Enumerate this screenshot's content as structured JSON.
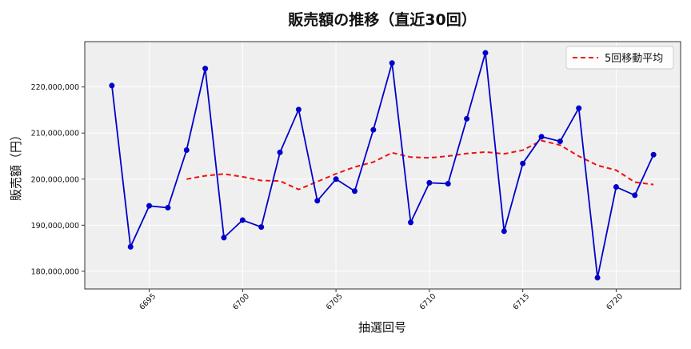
{
  "chart_data": {
    "type": "line",
    "title": "販売額の推移（直近30回）",
    "xlabel": "抽選回号",
    "ylabel": "販売額（円）",
    "x": [
      6693,
      6694,
      6695,
      6696,
      6697,
      6698,
      6699,
      6700,
      6701,
      6702,
      6703,
      6704,
      6705,
      6706,
      6707,
      6708,
      6709,
      6710,
      6711,
      6712,
      6713,
      6714,
      6715,
      6716,
      6717,
      6718,
      6719,
      6720,
      6721,
      6722
    ],
    "series": [
      {
        "name": "",
        "style": "solid-markers",
        "color": "#0000cc",
        "values": [
          220300000,
          185300000,
          194200000,
          193800000,
          206300000,
          224000000,
          187300000,
          191100000,
          189600000,
          205800000,
          215100000,
          195300000,
          200000000,
          197400000,
          210700000,
          225200000,
          190600000,
          199200000,
          199000000,
          213100000,
          227400000,
          188700000,
          203400000,
          209200000,
          208200000,
          215400000,
          178600000,
          198300000,
          196500000,
          205300000
        ]
      },
      {
        "name": "5回移動平均",
        "style": "dashed",
        "color": "#ee1111",
        "values": [
          null,
          null,
          null,
          null,
          200000000,
          200720000,
          201120000,
          200500000,
          199700000,
          199600000,
          197760000,
          199460000,
          201160000,
          202640000,
          203700000,
          205720000,
          204780000,
          204620000,
          205000000,
          205560000,
          205880000,
          205480000,
          206280000,
          208360000,
          207380000,
          204980000,
          202980000,
          201940000,
          199340000,
          198820000
        ]
      }
    ],
    "xticks": [
      6695,
      6700,
      6705,
      6710,
      6715,
      6720
    ],
    "yticks": [
      180000000,
      190000000,
      200000000,
      210000000,
      220000000
    ],
    "ytick_labels": [
      "180,000,000",
      "190,000,000",
      "200,000,000",
      "210,000,000",
      "220,000,000"
    ],
    "xlim": [
      6691.55,
      6723.45
    ],
    "ylim": [
      176160000,
      229840000
    ],
    "grid": true,
    "legend": "top-right",
    "background": "#efefef"
  }
}
